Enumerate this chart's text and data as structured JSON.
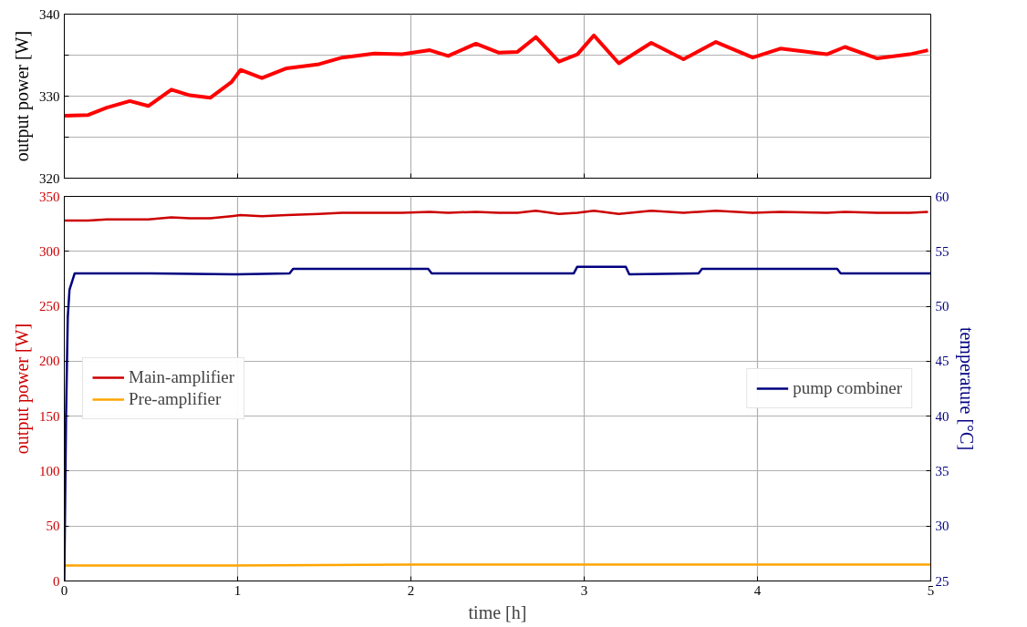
{
  "chart_data": [
    {
      "type": "line",
      "ylabel": "output power [W]",
      "xlim": [
        0,
        5
      ],
      "ylim": [
        320,
        340
      ],
      "xticks": [
        0,
        1,
        2,
        3,
        4,
        5
      ],
      "yticks": [
        320,
        {
          "value": 325,
          "label": null
        },
        330,
        {
          "value": 335,
          "label": null
        },
        340
      ],
      "tick_labels": "y",
      "grid": true,
      "legend": false,
      "series": [
        {
          "color": "#ff0000",
          "x": [
            0,
            0.138,
            0.245,
            0.378,
            0.485,
            0.618,
            0.724,
            0.842,
            0.964,
            1.017,
            1.14,
            1.283,
            1.47,
            1.603,
            1.789,
            1.949,
            2.109,
            2.215,
            2.375,
            2.508,
            2.615,
            2.721,
            2.854,
            2.961,
            3.056,
            3.2,
            3.387,
            3.573,
            3.76,
            3.973,
            4.132,
            4.4,
            4.505,
            4.691,
            4.878,
            4.984
          ],
          "values": [
            327.6,
            327.7,
            328.6,
            329.4,
            328.8,
            330.8,
            330.1,
            329.8,
            331.7,
            333.2,
            332.2,
            333.4,
            333.9,
            334.7,
            335.2,
            335.1,
            335.6,
            334.9,
            336.4,
            335.3,
            335.4,
            337.2,
            334.2,
            335.1,
            337.4,
            334.0,
            336.5,
            334.5,
            336.6,
            334.7,
            335.8,
            335.1,
            336.0,
            334.6,
            335.1,
            335.6
          ]
        }
      ]
    },
    {
      "type": "line",
      "xlabel": "time [h]",
      "ylabel": "output power [W]",
      "y2label": "temperature [°C]",
      "xlim": [
        0,
        5
      ],
      "ylim": [
        0,
        350
      ],
      "y2lim": [
        25,
        60
      ],
      "xticks": [
        0,
        1,
        2,
        3,
        4,
        5
      ],
      "yticks": [
        0,
        50,
        100,
        150,
        200,
        250,
        300,
        350
      ],
      "y2ticks": [
        25,
        30,
        35,
        40,
        45,
        50,
        55,
        60
      ],
      "grid": true,
      "legend": "center left",
      "series": [
        {
          "name": "Main-amplifier",
          "color": "#cc0000",
          "x": [
            0,
            0.138,
            0.245,
            0.378,
            0.485,
            0.618,
            0.724,
            0.842,
            0.964,
            1.017,
            1.14,
            1.283,
            1.47,
            1.603,
            1.789,
            1.949,
            2.109,
            2.215,
            2.375,
            2.508,
            2.615,
            2.721,
            2.854,
            2.961,
            3.056,
            3.2,
            3.387,
            3.573,
            3.76,
            3.973,
            4.132,
            4.4,
            4.505,
            4.691,
            4.878,
            4.984
          ],
          "values": [
            328,
            328,
            329,
            329,
            329,
            331,
            330,
            330,
            332,
            333,
            332,
            333,
            334,
            335,
            335,
            335,
            336,
            335,
            336,
            335,
            335,
            337,
            334,
            335,
            337,
            334,
            337,
            335,
            337,
            335,
            336,
            335,
            336,
            335,
            335,
            336
          ]
        },
        {
          "name": "Pre-amplifier",
          "color": "#ffa500",
          "x": [
            0,
            1,
            2,
            3,
            4,
            5
          ],
          "values": [
            14,
            14,
            15,
            15,
            15,
            15
          ]
        },
        {
          "name": "pump combiner",
          "color": "#000080",
          "axis": "y2",
          "x": [
            0,
            0.01,
            0.02,
            0.03,
            0.06,
            0.5,
            1.0,
            1.3,
            1.32,
            2.1,
            2.12,
            2.94,
            2.96,
            3.24,
            3.26,
            3.66,
            3.68,
            4.46,
            4.48,
            5
          ],
          "values": [
            25,
            40,
            49,
            51.5,
            53.0,
            53.0,
            52.9,
            53.0,
            53.4,
            53.4,
            53.0,
            53.0,
            53.6,
            53.6,
            52.9,
            53.0,
            53.4,
            53.4,
            53.0,
            53.0
          ]
        }
      ]
    }
  ]
}
